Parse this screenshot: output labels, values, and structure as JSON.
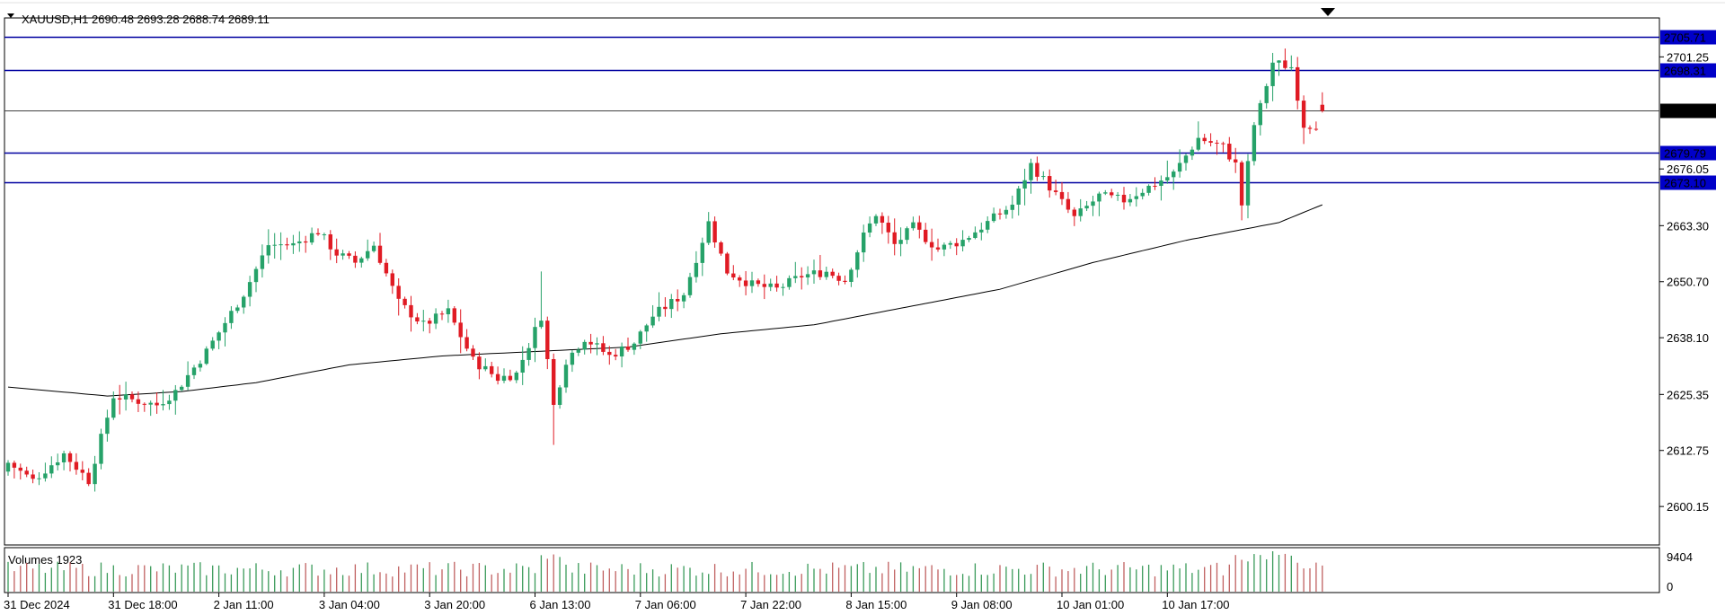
{
  "header": {
    "symbol_info": "XAUUSD,H1  2690.48 2693.28 2688.74 2689.11"
  },
  "volume_panel": {
    "title": "Volumes 1923",
    "y_ticks": [
      "9404",
      "0"
    ],
    "max_value": 9404
  },
  "chart_data": {
    "type": "candlestick",
    "title": "",
    "symbol": "XAUUSD",
    "timeframe": "H1",
    "ohlc_last": {
      "open": 2690.48,
      "high": 2693.28,
      "low": 2688.74,
      "close": 2689.11
    },
    "current_price": 2689.11,
    "price_scale": [
      "2701.25",
      "2676.05",
      "2663.30",
      "2650.70",
      "2638.10",
      "2625.35",
      "2612.75",
      "2600.15"
    ],
    "ylim": [
      2591.5,
      2710.0
    ],
    "horizontal_levels": [
      {
        "value": 2705.71,
        "label": "2705.71",
        "color": "#0000a0",
        "label_bg": "#0000c8",
        "label_fg": "#ffffff"
      },
      {
        "value": 2698.31,
        "label": "2698.31",
        "color": "#0000a0",
        "label_bg": "#0000c8",
        "label_fg": "#ffffff"
      },
      {
        "value": 2689.11,
        "label": "2689.11",
        "color": "#404040",
        "label_bg": "#000000",
        "label_fg": "#ffffff"
      },
      {
        "value": 2679.79,
        "label": "2679.79",
        "color": "#0000a0",
        "label_bg": "#0000c8",
        "label_fg": "#ffffff"
      },
      {
        "value": 2673.1,
        "label": "2673.10",
        "color": "#0000a0",
        "label_bg": "#0000c8",
        "label_fg": "#ffffff"
      }
    ],
    "x_labels": [
      {
        "index": 0,
        "label": "31 Dec 2024"
      },
      {
        "index": 17,
        "label": "31 Dec 18:00"
      },
      {
        "index": 34,
        "label": "2 Jan 11:00"
      },
      {
        "index": 51,
        "label": "3 Jan 04:00"
      },
      {
        "index": 68,
        "label": "3 Jan 20:00"
      },
      {
        "index": 85,
        "label": "6 Jan 13:00"
      },
      {
        "index": 102,
        "label": "7 Jan 06:00"
      },
      {
        "index": 119,
        "label": "7 Jan 22:00"
      },
      {
        "index": 136,
        "label": "8 Jan 15:00"
      },
      {
        "index": 153,
        "label": "9 Jan 08:00"
      },
      {
        "index": 170,
        "label": "10 Jan 01:00"
      },
      {
        "index": 187,
        "label": "10 Jan 17:00"
      }
    ],
    "colors": {
      "bull": "#26a269",
      "bear": "#e01b24",
      "ma": "#000000",
      "volume": "#c06060",
      "volume_up": "#3a9a5a"
    },
    "candles": [],
    "moving_average": [],
    "volumes": []
  }
}
